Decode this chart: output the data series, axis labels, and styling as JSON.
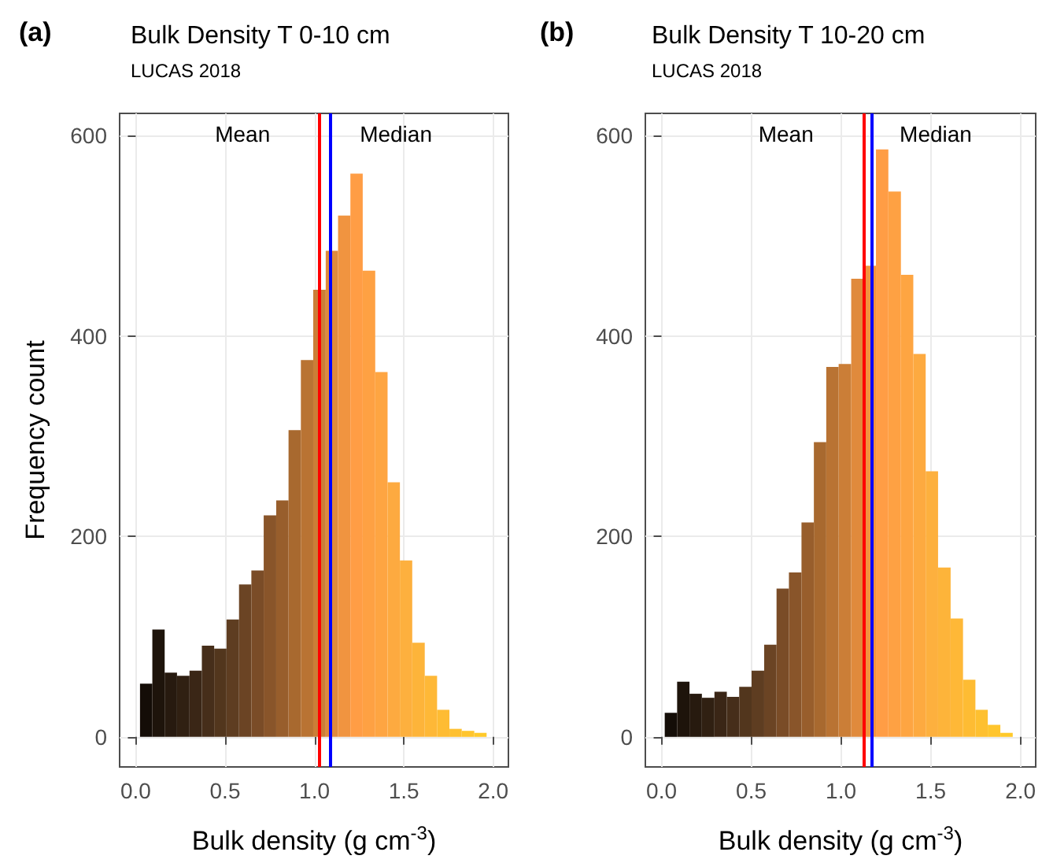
{
  "chart_data": [
    {
      "type": "histogram",
      "title": "Bulk Density T 0-10 cm",
      "subtitle": "LUCAS 2018",
      "annotations": [
        "(a)"
      ],
      "xlabel": "Bulk density (g cm$^{-3}$)",
      "ylabel": "Frequency count",
      "bins": [
        0.024,
        0.093,
        0.162,
        0.231,
        0.301,
        0.37,
        0.439,
        0.508,
        0.578,
        0.647,
        0.716,
        0.786,
        0.855,
        0.924,
        0.993,
        1.063,
        1.132,
        1.201,
        1.27,
        1.34,
        1.409,
        1.478,
        1.547,
        1.617,
        1.686,
        1.755,
        1.824,
        1.894,
        1.963
      ],
      "values": [
        53,
        107,
        64,
        61,
        66,
        91,
        88,
        117,
        152,
        166,
        221,
        236,
        306,
        376,
        446,
        485,
        520,
        562,
        465,
        364,
        254,
        176,
        94,
        61,
        27,
        8,
        6,
        4
      ],
      "colors": [
        "#140d07",
        "#1e140b",
        "#271a0f",
        "#302012",
        "#3a2616",
        "#462e1a",
        "#52361d",
        "#5e3d21",
        "#6b4424",
        "#7a4c27",
        "#89552a",
        "#985e2c",
        "#a8692f",
        "#b97333",
        "#cb7e37",
        "#e08a3c",
        "#f09440",
        "#ff9d45",
        "#fea143",
        "#fea542",
        "#fdaa40",
        "#fdb03e",
        "#fdb43a",
        "#feb837",
        "#febc33",
        "#fec030",
        "#ffc52d",
        "#ffc92a"
      ],
      "xlim": [
        -0.09,
        2.085
      ],
      "xticks": [
        {
          "value": 0,
          "label": "0.0"
        },
        {
          "value": 0.5,
          "label": "0.5"
        },
        {
          "value": 1,
          "label": "1.0"
        },
        {
          "value": 1.5,
          "label": "1.5"
        },
        {
          "value": 2,
          "label": "2.0"
        }
      ],
      "ylim": [
        -30,
        622
      ],
      "yticks": [
        0,
        200,
        400,
        600
      ],
      "grid": true,
      "ref_lines": [
        {
          "axis": "x",
          "value": 1.034,
          "label": "Mean",
          "color": "#ff0000"
        },
        {
          "axis": "x",
          "value": 1.095,
          "label": "Median",
          "color": "#0000ff"
        }
      ]
    },
    {
      "type": "histogram",
      "title": "Bulk Density T 10-20 cm",
      "subtitle": "LUCAS 2018",
      "annotations": [
        "(b)"
      ],
      "xlabel": "Bulk density (g cm$^{-3}$)",
      "bins": [
        0.018,
        0.087,
        0.156,
        0.225,
        0.295,
        0.364,
        0.433,
        0.502,
        0.572,
        0.641,
        0.71,
        0.78,
        0.849,
        0.918,
        0.987,
        1.057,
        1.126,
        1.195,
        1.264,
        1.334,
        1.403,
        1.472,
        1.541,
        1.611,
        1.68,
        1.749,
        1.818,
        1.888,
        1.957
      ],
      "values": [
        24,
        55,
        43,
        39,
        45,
        40,
        50,
        66,
        92,
        148,
        164,
        214,
        294,
        369,
        372,
        457,
        470,
        586,
        544,
        461,
        382,
        265,
        169,
        118,
        57,
        27,
        12,
        4
      ],
      "colors": [
        "#140d07",
        "#1e140b",
        "#271a0f",
        "#302012",
        "#3a2616",
        "#462e1a",
        "#52361d",
        "#5e3d21",
        "#6b4424",
        "#7a4c27",
        "#89552a",
        "#985e2c",
        "#a8692f",
        "#b97333",
        "#cb7e37",
        "#e08a3c",
        "#f09440",
        "#ff9d45",
        "#fea143",
        "#fea542",
        "#fdaa40",
        "#fdb03e",
        "#fdb43a",
        "#feb837",
        "#febc33",
        "#fec030",
        "#ffc52d",
        "#ffc92a"
      ],
      "xlim": [
        -0.09,
        2.085
      ],
      "xticks": [
        {
          "value": 0,
          "label": "0.0"
        },
        {
          "value": 0.5,
          "label": "0.5"
        },
        {
          "value": 1,
          "label": "1.0"
        },
        {
          "value": 1.5,
          "label": "1.5"
        },
        {
          "value": 2,
          "label": "2.0"
        }
      ],
      "ylim": [
        -30,
        622
      ],
      "yticks": [
        0,
        200,
        400,
        600
      ],
      "grid": true,
      "ref_lines": [
        {
          "axis": "x",
          "value": 1.128,
          "label": "Mean",
          "color": "#ff0000"
        },
        {
          "axis": "x",
          "value": 1.169,
          "label": "Median",
          "color": "#0000ff"
        }
      ]
    }
  ]
}
